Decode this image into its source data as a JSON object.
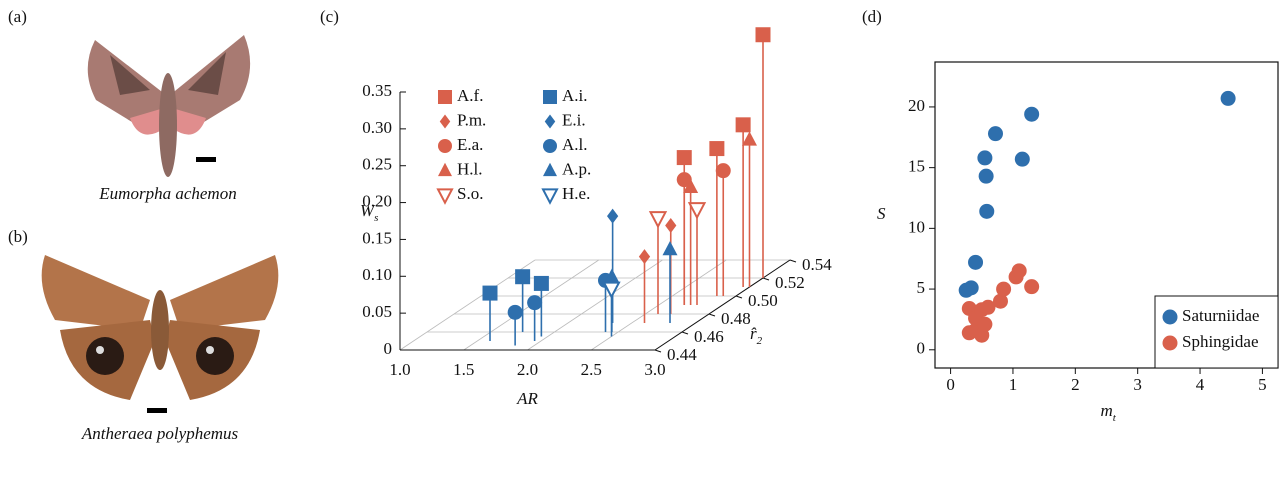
{
  "panel_labels": [
    "(a)",
    "(b)",
    "(c)",
    "(d)"
  ],
  "photos": [
    {
      "caption": "Eumorpha achemon"
    },
    {
      "caption": "Antheraea polyphemus"
    }
  ],
  "chart_data": [
    {
      "type": "stem3d",
      "xlabel": "AR",
      "ylabel": {
        "text": "r̂",
        "subscript": "2"
      },
      "zlabel": {
        "text": "W",
        "subscript": "s"
      },
      "xlim": [
        1,
        3
      ],
      "xticks": [
        {
          "value": 1,
          "label": "1.0"
        },
        1.5,
        {
          "value": 2,
          "label": "2.0"
        },
        2.5,
        {
          "value": 3,
          "label": "3.0"
        }
      ],
      "ylim": [
        0.44,
        0.54
      ],
      "yticks": [
        0.44,
        0.46,
        0.48,
        {
          "value": 0.5,
          "label": "0.50"
        },
        0.52,
        0.54
      ],
      "zlim": [
        0,
        0.35
      ],
      "zticks": [
        0,
        0.05,
        {
          "value": 0.1,
          "label": "0.10"
        },
        0.15,
        {
          "value": 0.2,
          "label": "0.20"
        },
        0.25,
        {
          "value": 0.3,
          "label": "0.30"
        },
        0.35
      ],
      "grid": true,
      "series": [
        {
          "name": "A.f.",
          "color": "#d9604b",
          "marker": "square",
          "filled": true,
          "x": [
            2.7,
            2.85,
            2.95,
            3.0
          ],
          "y": [
            0.49,
            0.5,
            0.51,
            0.52
          ],
          "z": [
            0.2,
            0.2,
            0.22,
            0.33
          ]
        },
        {
          "name": "P.m.",
          "color": "#d9604b",
          "marker": "diamond",
          "filled": true,
          "x": [
            2.6,
            2.7
          ],
          "y": [
            0.47,
            0.48
          ],
          "z": [
            0.09,
            0.12
          ]
        },
        {
          "name": "E.a.",
          "color": "#d9604b",
          "marker": "circle",
          "filled": true,
          "x": [
            2.7,
            2.9
          ],
          "y": [
            0.49,
            0.5
          ],
          "z": [
            0.17,
            0.17
          ]
        },
        {
          "name": "H.l.",
          "color": "#d9604b",
          "marker": "triangle",
          "filled": true,
          "x": [
            2.75,
            3.0
          ],
          "y": [
            0.49,
            0.51
          ],
          "z": [
            0.16,
            0.2
          ]
        },
        {
          "name": "S.o.",
          "color": "#d9604b",
          "marker": "tridown",
          "filled": false,
          "x": [
            2.6,
            2.8
          ],
          "y": [
            0.48,
            0.49
          ],
          "z": [
            0.13,
            0.13
          ]
        },
        {
          "name": "A.i.",
          "color": "#2e6fad",
          "marker": "square",
          "filled": true,
          "x": [
            1.6,
            1.75,
            1.95
          ],
          "y": [
            0.45,
            0.46,
            0.455
          ],
          "z": [
            0.065,
            0.075,
            0.072
          ]
        },
        {
          "name": "E.i.",
          "color": "#2e6fad",
          "marker": "diamond",
          "filled": true,
          "x": [
            2.35
          ],
          "y": [
            0.47
          ],
          "z": [
            0.145
          ]
        },
        {
          "name": "A.l.",
          "color": "#2e6fad",
          "marker": "circle",
          "filled": true,
          "x": [
            1.85,
            1.95,
            2.4
          ],
          "y": [
            0.445,
            0.45,
            0.46
          ],
          "z": [
            0.045,
            0.052,
            0.07
          ]
        },
        {
          "name": "A.p.",
          "color": "#2e6fad",
          "marker": "triangle",
          "filled": true,
          "x": [
            2.45,
            2.8
          ],
          "y": [
            0.46,
            0.47
          ],
          "z": [
            0.075,
            0.1
          ]
        },
        {
          "name": "H.e.",
          "color": "#2e6fad",
          "marker": "tridown",
          "filled": false,
          "x": [
            2.5
          ],
          "y": [
            0.455
          ],
          "z": [
            0.065
          ]
        }
      ]
    },
    {
      "type": "scatter",
      "xlabel": {
        "text": "m",
        "subscript": "t"
      },
      "ylabel": "S",
      "xlim": [
        -0.25,
        5.25
      ],
      "xticks": [
        0,
        1,
        2,
        3,
        4,
        5
      ],
      "ylim": [
        -1.5,
        23.7
      ],
      "yticks": [
        0,
        5,
        10,
        15,
        20
      ],
      "legend": "lower right",
      "series": [
        {
          "name": "Saturniidae",
          "color": "#2e6fad",
          "x": [
            0.25,
            0.33,
            0.4,
            0.55,
            0.57,
            0.58,
            0.72,
            1.15,
            1.3,
            4.45
          ],
          "y": [
            4.9,
            5.1,
            7.2,
            15.8,
            14.3,
            11.4,
            17.8,
            15.7,
            19.4,
            20.7
          ]
        },
        {
          "name": "Sphingidae",
          "color": "#d9604b",
          "x": [
            0.3,
            0.3,
            0.4,
            0.4,
            0.5,
            0.5,
            0.55,
            0.6,
            0.8,
            0.85,
            1.05,
            1.1,
            1.3
          ],
          "y": [
            3.4,
            1.4,
            1.6,
            2.6,
            1.2,
            3.3,
            2.1,
            3.5,
            4.0,
            5.0,
            6.0,
            6.5,
            5.2
          ]
        }
      ]
    }
  ]
}
